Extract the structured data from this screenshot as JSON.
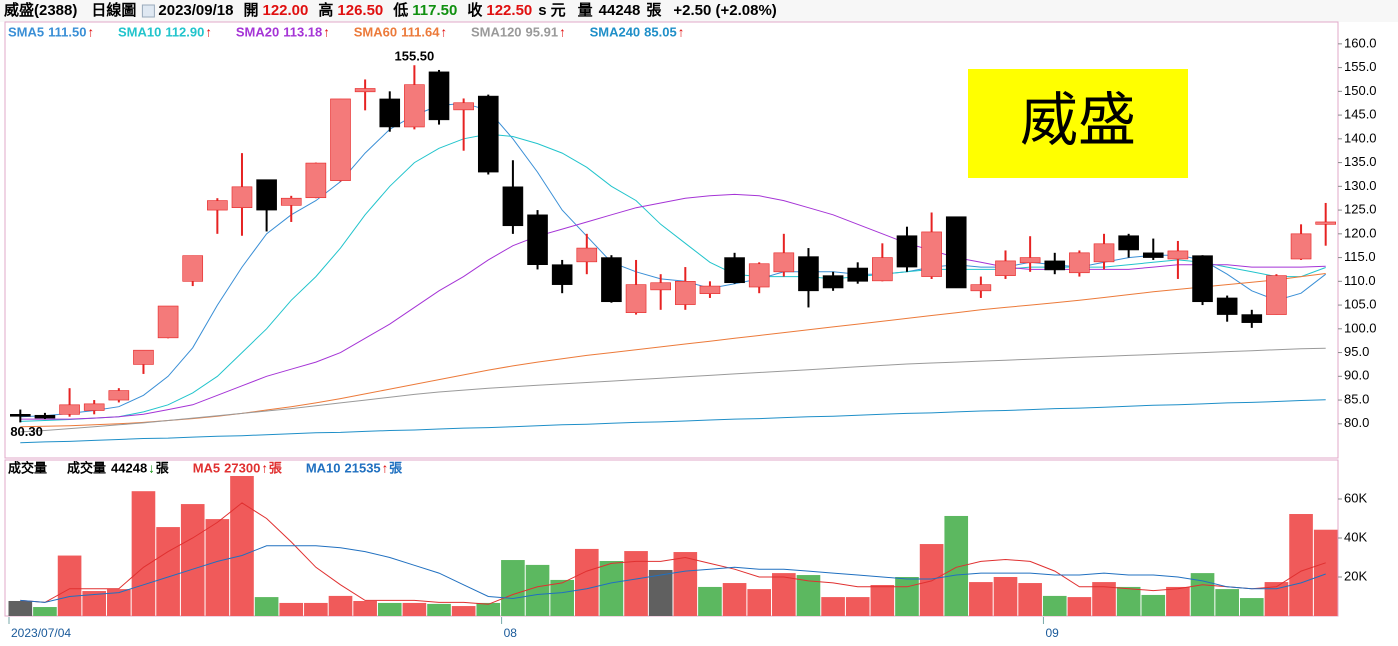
{
  "header": {
    "name": "威盛(2388)",
    "period": "日線圖",
    "date": "2023/09/18",
    "open_label": "開",
    "open": "122.00",
    "high_label": "高",
    "high": "126.50",
    "low_label": "低",
    "low": "117.50",
    "close_label": "收",
    "close": "122.50",
    "s": "s",
    "currency": "元",
    "volume_label": "量",
    "volume": "44248",
    "volume_unit": "張",
    "change": "+2.50 (+2.08%)"
  },
  "chart_data": [
    {
      "type": "candlestick",
      "watermark": "威盛",
      "open": [
        82,
        81.8,
        82,
        82.8,
        85,
        92.5,
        98.1,
        110,
        125,
        125.5,
        131.4,
        126,
        127.6,
        131.2,
        149.9,
        148.4,
        142.5,
        154.1,
        146.1,
        149,
        129.9,
        124,
        113.5,
        114.1,
        115,
        103.4,
        108.2,
        105.1,
        107.4,
        115,
        108.8,
        112,
        115.2,
        111.2,
        112.8,
        110.1,
        119.6,
        111,
        123.6,
        108,
        111.2,
        113.9,
        114.3,
        111.8,
        114.1,
        119.6,
        116,
        114.7,
        115.4,
        106.5,
        103,
        103,
        114.7,
        122
      ],
      "high": [
        83,
        82.3,
        87.5,
        85,
        87.5,
        95.5,
        104.8,
        115.4,
        127.5,
        137,
        131.4,
        128,
        135,
        148.4,
        152.5,
        150,
        155.5,
        154.5,
        148.5,
        149.3,
        135.5,
        125,
        114.5,
        120,
        115.5,
        114.5,
        111.5,
        113,
        110,
        116,
        114,
        120,
        117,
        112,
        114,
        118,
        121.5,
        124.5,
        123.6,
        111,
        116.5,
        119.5,
        116,
        116.5,
        120,
        120,
        119,
        118.5,
        115.5,
        107,
        104,
        111.5,
        122,
        126.5
      ],
      "low": [
        80.3,
        81,
        81.5,
        82,
        84.5,
        90.5,
        98,
        109,
        120,
        119.6,
        120.5,
        122.5,
        127.5,
        131,
        146,
        141.5,
        142,
        143,
        137.5,
        132.5,
        120,
        112.5,
        107.5,
        111.5,
        105.5,
        103,
        104,
        104,
        106.5,
        109.5,
        107.5,
        111,
        104.5,
        108,
        109.5,
        110,
        112,
        110.5,
        108.6,
        106.5,
        110.5,
        112,
        111.5,
        111,
        112.5,
        115,
        114.5,
        110.5,
        105,
        101.5,
        100.2,
        103,
        114.5,
        117.5
      ],
      "close": [
        81.8,
        81.2,
        84,
        84.2,
        87,
        95.5,
        104.8,
        115.4,
        127,
        129.9,
        125,
        127.5,
        134.9,
        148.4,
        150.6,
        142.5,
        151.4,
        144,
        147.6,
        133,
        121.7,
        113.5,
        109.3,
        117,
        105.7,
        109.3,
        109.7,
        110,
        109,
        109.7,
        113.7,
        116,
        108,
        108.6,
        110,
        115,
        113,
        120.4,
        108.6,
        109.3,
        114.3,
        115,
        112.4,
        116,
        117.9,
        116.6,
        115,
        116.4,
        105.7,
        103,
        101.3,
        111.2,
        120,
        122.5
      ],
      "up_color": "#f47a7a",
      "up_line_color": "#e62222",
      "down_color": "#000000",
      "series": [
        {
          "name": "SMA5",
          "legend_value": "111.50",
          "arrow": "↑",
          "color": "#3a8fd6",
          "values": [
            81.5,
            81.7,
            82.2,
            82.8,
            83.6,
            86,
            90,
            96,
            105,
            113,
            120,
            124,
            127,
            131,
            137,
            142,
            145,
            147,
            147.5,
            146,
            140,
            133,
            125,
            119.5,
            114,
            112,
            110.5,
            110,
            108.5,
            109.5,
            110.5,
            112,
            112,
            112,
            111.5,
            111.5,
            112,
            113,
            113.5,
            113,
            113,
            114,
            113.5,
            113,
            114,
            115,
            115.5,
            115.5,
            114.5,
            111.5,
            108,
            106,
            107.5,
            111.5
          ]
        },
        {
          "name": "SMA10",
          "legend_value": "112.90",
          "arrow": "↑",
          "color": "#22c4cc",
          "values": [
            80.5,
            80.7,
            80.9,
            81.2,
            81.5,
            82.5,
            84,
            86.5,
            90,
            95,
            100,
            106,
            111,
            117,
            124,
            130,
            135,
            138,
            140,
            141,
            140.5,
            139,
            137,
            134,
            130,
            127,
            122,
            118,
            114,
            111.5,
            111,
            111,
            111,
            110.5,
            111,
            111.5,
            112,
            112.5,
            112.5,
            112.5,
            112.5,
            113,
            113,
            113,
            113,
            113.5,
            114,
            114.5,
            114,
            113,
            112,
            111,
            111,
            112.9
          ]
        },
        {
          "name": "SMA20",
          "legend_value": "113.18",
          "arrow": "↑",
          "color": "#a534d6",
          "values": [
            81,
            81,
            81,
            81.2,
            81.5,
            82,
            83,
            84,
            86,
            88,
            90,
            91.5,
            93,
            95,
            98,
            101,
            104.5,
            108,
            111,
            114.5,
            117.5,
            119.5,
            121,
            122.5,
            124,
            125.5,
            126.5,
            127.5,
            128,
            128.3,
            128,
            127,
            125.5,
            124,
            122,
            120,
            118,
            116.5,
            115,
            114,
            113,
            112.5,
            112.5,
            112.5,
            112.5,
            112.5,
            113,
            113.5,
            113.5,
            113.5,
            113,
            113,
            113,
            113.18
          ]
        },
        {
          "name": "SMA60",
          "legend_value": "111.64",
          "arrow": "↑",
          "color": "#ec7a3a",
          "values": [
            79.4,
            79.5,
            79.6,
            79.8,
            80,
            80.3,
            80.7,
            81.1,
            81.6,
            82.2,
            82.9,
            83.6,
            84.4,
            85.3,
            86.3,
            87.3,
            88.3,
            89.3,
            90.3,
            91.3,
            92.2,
            93,
            93.7,
            94.4,
            95,
            95.6,
            96.2,
            96.8,
            97.4,
            98,
            98.6,
            99.2,
            99.8,
            100.4,
            101,
            101.6,
            102.2,
            102.8,
            103.4,
            104,
            104.5,
            105,
            105.5,
            106,
            106.6,
            107.2,
            107.8,
            108.3,
            108.8,
            109.3,
            109.8,
            110.3,
            111,
            111.64
          ]
        },
        {
          "name": "SMA120",
          "legend_value": "95.91",
          "arrow": "↑",
          "color": "#9a9a9a",
          "values": [
            78.3,
            78.6,
            79,
            79.4,
            79.8,
            80.2,
            80.7,
            81.2,
            81.7,
            82.2,
            82.7,
            83.2,
            83.8,
            84.4,
            85,
            85.6,
            86.2,
            86.7,
            87.1,
            87.5,
            87.8,
            88.1,
            88.4,
            88.7,
            89,
            89.3,
            89.6,
            89.9,
            90.2,
            90.5,
            90.8,
            91.1,
            91.4,
            91.7,
            92,
            92.3,
            92.6,
            92.8,
            93,
            93.2,
            93.4,
            93.6,
            93.8,
            94,
            94.2,
            94.4,
            94.6,
            94.8,
            95,
            95.2,
            95.4,
            95.6,
            95.8,
            95.91
          ]
        },
        {
          "name": "SMA240",
          "legend_value": "85.05",
          "arrow": "↑",
          "color": "#1f8fc8",
          "values": [
            76,
            76.2,
            76.3,
            76.5,
            76.7,
            76.9,
            77,
            77.2,
            77.4,
            77.5,
            77.7,
            77.9,
            78.1,
            78.2,
            78.4,
            78.6,
            78.7,
            78.9,
            79.1,
            79.2,
            79.4,
            79.6,
            79.8,
            79.9,
            80.1,
            80.3,
            80.4,
            80.6,
            80.8,
            81,
            81.1,
            81.3,
            81.5,
            81.6,
            81.8,
            82,
            82.2,
            82.3,
            82.5,
            82.7,
            82.8,
            83,
            83.2,
            83.3,
            83.5,
            83.7,
            83.9,
            84,
            84.2,
            84.4,
            84.5,
            84.7,
            84.9,
            85.05
          ]
        }
      ],
      "ylim": [
        72.8,
        164.6
      ],
      "yticks": [
        {
          "value": 160,
          "label": "160.0"
        },
        {
          "value": 155,
          "label": "155.0"
        },
        {
          "value": 150,
          "label": "150.0"
        },
        {
          "value": 145,
          "label": "145.0"
        },
        {
          "value": 140,
          "label": "140.0"
        },
        {
          "value": 135,
          "label": "135.0"
        },
        {
          "value": 130,
          "label": "130.0"
        },
        {
          "value": 125,
          "label": "125.0"
        },
        {
          "value": 120,
          "label": "120.0"
        },
        {
          "value": 115,
          "label": "115.0"
        },
        {
          "value": 110,
          "label": "110.0"
        },
        {
          "value": 105,
          "label": "105.0"
        },
        {
          "value": 100,
          "label": "100.0"
        },
        {
          "value": 95,
          "label": "95.0"
        },
        {
          "value": 90,
          "label": "90.0"
        },
        {
          "value": 85,
          "label": "85.0"
        },
        {
          "value": 80,
          "label": "80.0"
        }
      ],
      "annotations": [
        {
          "label": "155.50",
          "value": 155.5
        },
        {
          "label": "80.30",
          "value": 80.3
        }
      ]
    },
    {
      "type": "bar",
      "title": "成交量",
      "categories": [
        "2023/07/04",
        null,
        null,
        null,
        null,
        null,
        null,
        null,
        null,
        null,
        null,
        null,
        null,
        null,
        null,
        null,
        null,
        null,
        null,
        null,
        "08",
        null,
        null,
        null,
        null,
        null,
        null,
        null,
        null,
        null,
        null,
        null,
        null,
        null,
        null,
        null,
        null,
        null,
        null,
        null,
        null,
        null,
        "09",
        null,
        null,
        null,
        null,
        null,
        null,
        null,
        null,
        null,
        null,
        null
      ],
      "values": [
        7700,
        4600,
        31000,
        12800,
        13800,
        64000,
        45600,
        57400,
        49700,
        71800,
        9700,
        6700,
        6700,
        10300,
        7700,
        6700,
        6700,
        6200,
        5100,
        6700,
        28700,
        26200,
        18500,
        34400,
        28200,
        33300,
        23600,
        32800,
        14900,
        16900,
        13800,
        22000,
        21000,
        9700,
        9700,
        15900,
        20000,
        36900,
        51300,
        17400,
        20000,
        16900,
        10300,
        9700,
        17400,
        14900,
        10800,
        14900,
        22000,
        13800,
        9200,
        17400,
        52300,
        44248
      ],
      "colors": [
        "#606060",
        "#5cb860",
        "#f05a5a",
        "#f05a5a",
        "#f05a5a",
        "#f05a5a",
        "#f05a5a",
        "#f05a5a",
        "#f05a5a",
        "#f05a5a",
        "#5cb860",
        "#f05a5a",
        "#f05a5a",
        "#f05a5a",
        "#f05a5a",
        "#5cb860",
        "#f05a5a",
        "#5cb860",
        "#f05a5a",
        "#5cb860",
        "#5cb860",
        "#5cb860",
        "#5cb860",
        "#f05a5a",
        "#5cb860",
        "#f05a5a",
        "#606060",
        "#f05a5a",
        "#5cb860",
        "#f05a5a",
        "#f05a5a",
        "#f05a5a",
        "#5cb860",
        "#f05a5a",
        "#f05a5a",
        "#f05a5a",
        "#5cb860",
        "#f05a5a",
        "#5cb860",
        "#f05a5a",
        "#f05a5a",
        "#f05a5a",
        "#5cb860",
        "#f05a5a",
        "#f05a5a",
        "#5cb860",
        "#5cb860",
        "#f05a5a",
        "#5cb860",
        "#5cb860",
        "#5cb860",
        "#f05a5a",
        "#f05a5a",
        "#f05a5a"
      ],
      "legend": {
        "name": "成交量",
        "value": "44248",
        "arrow": "↓",
        "unit": "張"
      },
      "series": [
        {
          "name": "MA5",
          "legend_value": "27300",
          "arrow": "↑",
          "unit": "張",
          "color": "#e03030",
          "values": [
            8000,
            7000,
            14000,
            14000,
            14000,
            25000,
            33000,
            40000,
            48000,
            58000,
            50000,
            38000,
            25000,
            16000,
            8000,
            8000,
            8000,
            7000,
            7000,
            6000,
            11000,
            15000,
            17000,
            23000,
            27000,
            28000,
            28000,
            30000,
            27000,
            24000,
            20000,
            20000,
            18000,
            17000,
            15000,
            15000,
            15000,
            18000,
            25000,
            28000,
            29000,
            28000,
            23000,
            15000,
            15000,
            14000,
            13000,
            14000,
            16000,
            15000,
            14000,
            15000,
            23000,
            27300
          ]
        },
        {
          "name": "MA10",
          "legend_value": "21535",
          "arrow": "↑",
          "unit": "張",
          "color": "#2070c0",
          "values": [
            8000,
            7000,
            10000,
            11000,
            12000,
            16000,
            20000,
            24000,
            28000,
            31000,
            36000,
            36000,
            36000,
            35000,
            33000,
            30000,
            26000,
            22000,
            16000,
            10000,
            9000,
            11000,
            12000,
            14000,
            17000,
            19000,
            21000,
            23000,
            24000,
            25000,
            24000,
            24000,
            23000,
            22000,
            21000,
            20000,
            19000,
            19000,
            21000,
            22000,
            22000,
            22000,
            21000,
            21000,
            22000,
            21000,
            21000,
            20000,
            18000,
            15000,
            14000,
            14000,
            17000,
            21535
          ]
        }
      ],
      "ylim": [
        0,
        80000
      ],
      "yticks": [
        {
          "value": 20000,
          "label": "20K"
        },
        {
          "value": 40000,
          "label": "40K"
        },
        {
          "value": 60000,
          "label": "60K"
        }
      ]
    }
  ]
}
